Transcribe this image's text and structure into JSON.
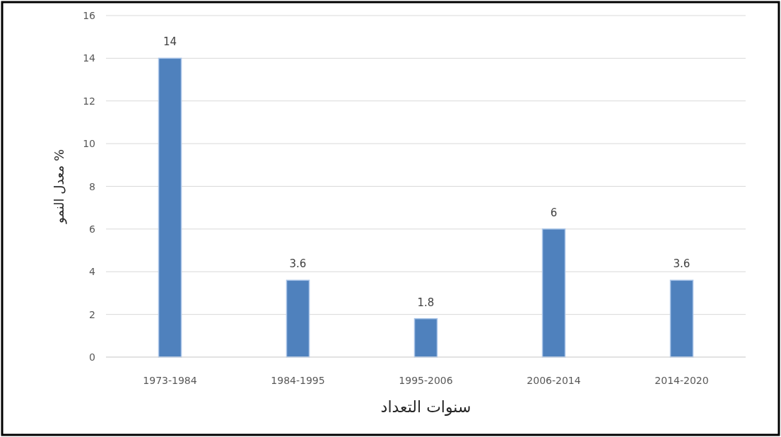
{
  "chart_data": {
    "type": "bar",
    "categories": [
      "1973-1984",
      "1984-1995",
      "1995-2006",
      "2006-2014",
      "2014-2020"
    ],
    "values": [
      14,
      3.6,
      1.8,
      6,
      3.6
    ],
    "color": "#4f81bd",
    "xlabel": "سنوات التعداد",
    "ylabel": "معدل النمو %",
    "ylim": [
      0,
      16
    ],
    "yticks": [
      0,
      2,
      4,
      6,
      8,
      10,
      12,
      14,
      16
    ],
    "grid": "y",
    "data_labels": true
  }
}
